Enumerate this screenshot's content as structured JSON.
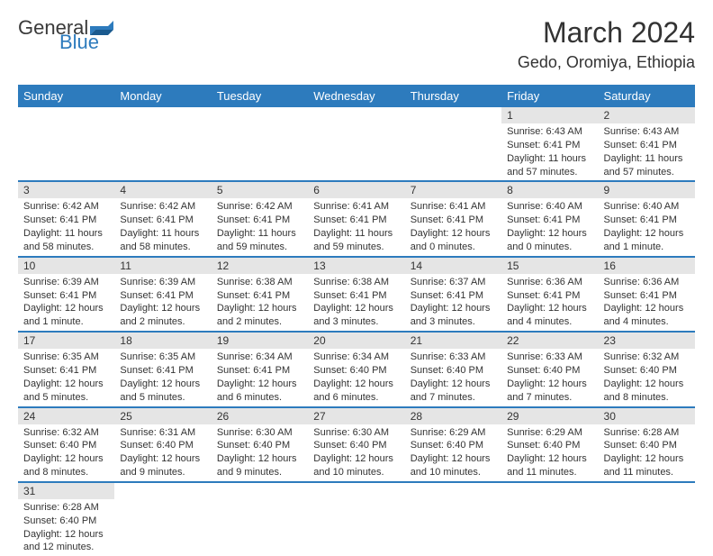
{
  "logo": {
    "text1": "General",
    "text2": "Blue"
  },
  "title": "March 2024",
  "location": "Gedo, Oromiya, Ethiopia",
  "colors": {
    "header_bg": "#2d7bbd",
    "header_text": "#ffffff",
    "daynum_bg": "#e5e5e5",
    "border": "#2d7bbd",
    "text": "#333333",
    "background": "#ffffff"
  },
  "weekdays": [
    "Sunday",
    "Monday",
    "Tuesday",
    "Wednesday",
    "Thursday",
    "Friday",
    "Saturday"
  ],
  "weeks": [
    [
      null,
      null,
      null,
      null,
      null,
      {
        "n": "1",
        "sr": "Sunrise: 6:43 AM",
        "ss": "Sunset: 6:41 PM",
        "d1": "Daylight: 11 hours",
        "d2": "and 57 minutes."
      },
      {
        "n": "2",
        "sr": "Sunrise: 6:43 AM",
        "ss": "Sunset: 6:41 PM",
        "d1": "Daylight: 11 hours",
        "d2": "and 57 minutes."
      }
    ],
    [
      {
        "n": "3",
        "sr": "Sunrise: 6:42 AM",
        "ss": "Sunset: 6:41 PM",
        "d1": "Daylight: 11 hours",
        "d2": "and 58 minutes."
      },
      {
        "n": "4",
        "sr": "Sunrise: 6:42 AM",
        "ss": "Sunset: 6:41 PM",
        "d1": "Daylight: 11 hours",
        "d2": "and 58 minutes."
      },
      {
        "n": "5",
        "sr": "Sunrise: 6:42 AM",
        "ss": "Sunset: 6:41 PM",
        "d1": "Daylight: 11 hours",
        "d2": "and 59 minutes."
      },
      {
        "n": "6",
        "sr": "Sunrise: 6:41 AM",
        "ss": "Sunset: 6:41 PM",
        "d1": "Daylight: 11 hours",
        "d2": "and 59 minutes."
      },
      {
        "n": "7",
        "sr": "Sunrise: 6:41 AM",
        "ss": "Sunset: 6:41 PM",
        "d1": "Daylight: 12 hours",
        "d2": "and 0 minutes."
      },
      {
        "n": "8",
        "sr": "Sunrise: 6:40 AM",
        "ss": "Sunset: 6:41 PM",
        "d1": "Daylight: 12 hours",
        "d2": "and 0 minutes."
      },
      {
        "n": "9",
        "sr": "Sunrise: 6:40 AM",
        "ss": "Sunset: 6:41 PM",
        "d1": "Daylight: 12 hours",
        "d2": "and 1 minute."
      }
    ],
    [
      {
        "n": "10",
        "sr": "Sunrise: 6:39 AM",
        "ss": "Sunset: 6:41 PM",
        "d1": "Daylight: 12 hours",
        "d2": "and 1 minute."
      },
      {
        "n": "11",
        "sr": "Sunrise: 6:39 AM",
        "ss": "Sunset: 6:41 PM",
        "d1": "Daylight: 12 hours",
        "d2": "and 2 minutes."
      },
      {
        "n": "12",
        "sr": "Sunrise: 6:38 AM",
        "ss": "Sunset: 6:41 PM",
        "d1": "Daylight: 12 hours",
        "d2": "and 2 minutes."
      },
      {
        "n": "13",
        "sr": "Sunrise: 6:38 AM",
        "ss": "Sunset: 6:41 PM",
        "d1": "Daylight: 12 hours",
        "d2": "and 3 minutes."
      },
      {
        "n": "14",
        "sr": "Sunrise: 6:37 AM",
        "ss": "Sunset: 6:41 PM",
        "d1": "Daylight: 12 hours",
        "d2": "and 3 minutes."
      },
      {
        "n": "15",
        "sr": "Sunrise: 6:36 AM",
        "ss": "Sunset: 6:41 PM",
        "d1": "Daylight: 12 hours",
        "d2": "and 4 minutes."
      },
      {
        "n": "16",
        "sr": "Sunrise: 6:36 AM",
        "ss": "Sunset: 6:41 PM",
        "d1": "Daylight: 12 hours",
        "d2": "and 4 minutes."
      }
    ],
    [
      {
        "n": "17",
        "sr": "Sunrise: 6:35 AM",
        "ss": "Sunset: 6:41 PM",
        "d1": "Daylight: 12 hours",
        "d2": "and 5 minutes."
      },
      {
        "n": "18",
        "sr": "Sunrise: 6:35 AM",
        "ss": "Sunset: 6:41 PM",
        "d1": "Daylight: 12 hours",
        "d2": "and 5 minutes."
      },
      {
        "n": "19",
        "sr": "Sunrise: 6:34 AM",
        "ss": "Sunset: 6:41 PM",
        "d1": "Daylight: 12 hours",
        "d2": "and 6 minutes."
      },
      {
        "n": "20",
        "sr": "Sunrise: 6:34 AM",
        "ss": "Sunset: 6:40 PM",
        "d1": "Daylight: 12 hours",
        "d2": "and 6 minutes."
      },
      {
        "n": "21",
        "sr": "Sunrise: 6:33 AM",
        "ss": "Sunset: 6:40 PM",
        "d1": "Daylight: 12 hours",
        "d2": "and 7 minutes."
      },
      {
        "n": "22",
        "sr": "Sunrise: 6:33 AM",
        "ss": "Sunset: 6:40 PM",
        "d1": "Daylight: 12 hours",
        "d2": "and 7 minutes."
      },
      {
        "n": "23",
        "sr": "Sunrise: 6:32 AM",
        "ss": "Sunset: 6:40 PM",
        "d1": "Daylight: 12 hours",
        "d2": "and 8 minutes."
      }
    ],
    [
      {
        "n": "24",
        "sr": "Sunrise: 6:32 AM",
        "ss": "Sunset: 6:40 PM",
        "d1": "Daylight: 12 hours",
        "d2": "and 8 minutes."
      },
      {
        "n": "25",
        "sr": "Sunrise: 6:31 AM",
        "ss": "Sunset: 6:40 PM",
        "d1": "Daylight: 12 hours",
        "d2": "and 9 minutes."
      },
      {
        "n": "26",
        "sr": "Sunrise: 6:30 AM",
        "ss": "Sunset: 6:40 PM",
        "d1": "Daylight: 12 hours",
        "d2": "and 9 minutes."
      },
      {
        "n": "27",
        "sr": "Sunrise: 6:30 AM",
        "ss": "Sunset: 6:40 PM",
        "d1": "Daylight: 12 hours",
        "d2": "and 10 minutes."
      },
      {
        "n": "28",
        "sr": "Sunrise: 6:29 AM",
        "ss": "Sunset: 6:40 PM",
        "d1": "Daylight: 12 hours",
        "d2": "and 10 minutes."
      },
      {
        "n": "29",
        "sr": "Sunrise: 6:29 AM",
        "ss": "Sunset: 6:40 PM",
        "d1": "Daylight: 12 hours",
        "d2": "and 11 minutes."
      },
      {
        "n": "30",
        "sr": "Sunrise: 6:28 AM",
        "ss": "Sunset: 6:40 PM",
        "d1": "Daylight: 12 hours",
        "d2": "and 11 minutes."
      }
    ],
    [
      {
        "n": "31",
        "sr": "Sunrise: 6:28 AM",
        "ss": "Sunset: 6:40 PM",
        "d1": "Daylight: 12 hours",
        "d2": "and 12 minutes."
      },
      null,
      null,
      null,
      null,
      null,
      null
    ]
  ]
}
